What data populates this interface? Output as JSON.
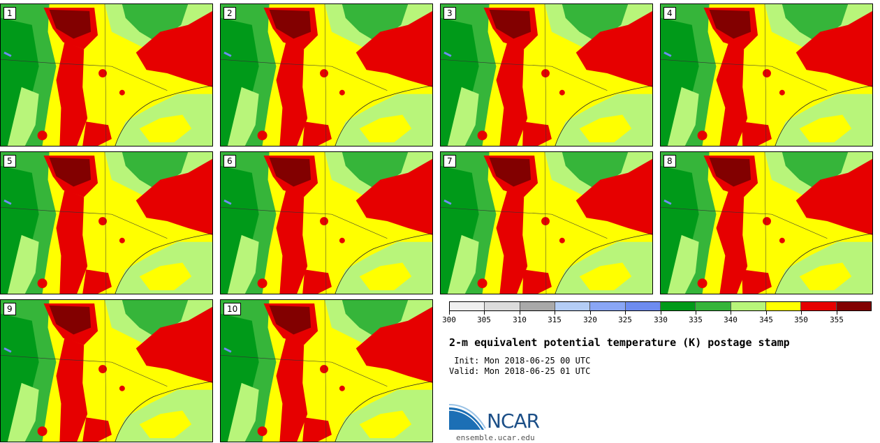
{
  "panels": [
    {
      "label": "1"
    },
    {
      "label": "2"
    },
    {
      "label": "3"
    },
    {
      "label": "4"
    },
    {
      "label": "5"
    },
    {
      "label": "6"
    },
    {
      "label": "7"
    },
    {
      "label": "8"
    },
    {
      "label": "9"
    },
    {
      "label": "10"
    }
  ],
  "colorbar": {
    "colors": [
      "#f0f0f0",
      "#dcdcdc",
      "#a9a9a9",
      "#b4cdf5",
      "#8aa6f5",
      "#6e8cf0",
      "#009a19",
      "#36b53a",
      "#b8f57a",
      "#ffff00",
      "#e60000",
      "#820000"
    ],
    "ticks": [
      "300",
      "305",
      "310",
      "315",
      "320",
      "325",
      "330",
      "335",
      "340",
      "345",
      "350",
      "355"
    ]
  },
  "title": "2-m equivalent potential temperature (K) postage stamp",
  "init": " Init: Mon 2018-06-25 00 UTC",
  "valid": "Valid: Mon 2018-06-25 01 UTC",
  "logo": {
    "text": "NCAR",
    "color": "#1c4f87"
  },
  "website": "ensemble.ucar.edu"
}
